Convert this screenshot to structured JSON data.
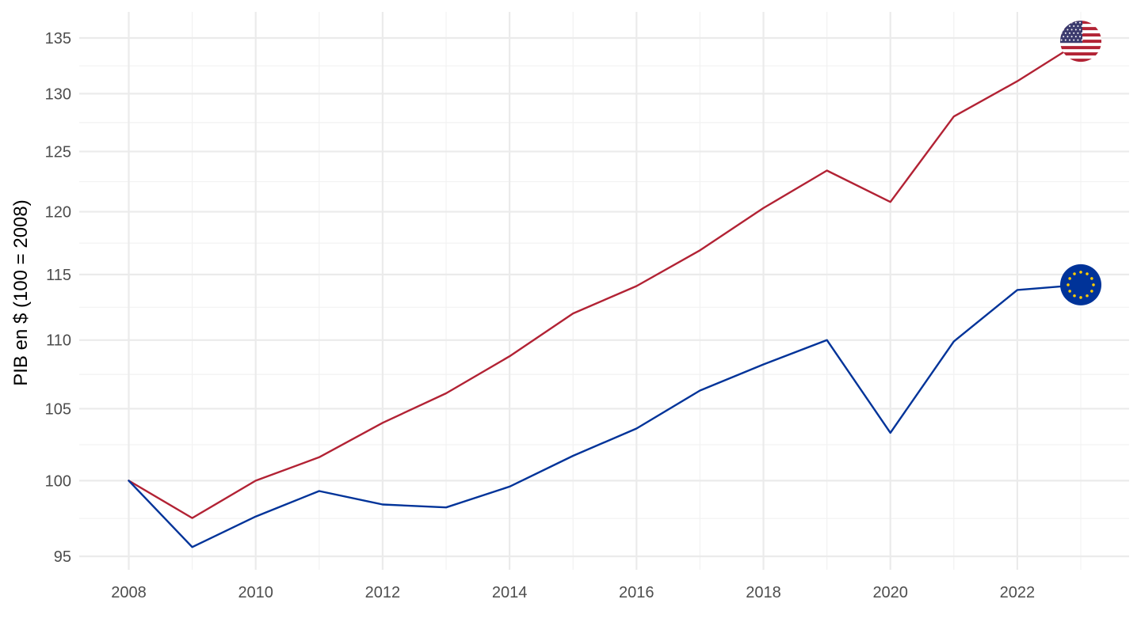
{
  "chart_data": {
    "type": "line",
    "title": "",
    "xlabel": "",
    "ylabel": "PIB en $ (100 = 2008)",
    "y_scale": "log",
    "x": [
      2008,
      2009,
      2010,
      2011,
      2012,
      2013,
      2014,
      2015,
      2016,
      2017,
      2018,
      2019,
      2020,
      2021,
      2022,
      2023
    ],
    "xlim": [
      2008,
      2023
    ],
    "ylim": [
      95,
      135
    ],
    "x_ticks": [
      2008,
      2010,
      2012,
      2014,
      2016,
      2018,
      2020,
      2022
    ],
    "y_ticks": [
      95,
      100,
      105,
      110,
      115,
      120,
      125,
      130,
      135
    ],
    "grid": true,
    "legend": "none",
    "series": [
      {
        "flag_icon": "us-flag-icon",
        "color": "#B22234",
        "values": [
          100,
          97.5,
          100.0,
          101.6,
          104.0,
          106.1,
          108.8,
          112.0,
          114.1,
          116.9,
          120.3,
          123.4,
          120.8,
          128.0,
          131.1,
          134.7
        ]
      },
      {
        "flag_icon": "eu-flag-icon",
        "color": "#003399",
        "values": [
          100,
          95.6,
          97.6,
          99.3,
          98.4,
          98.2,
          99.6,
          101.7,
          103.6,
          106.3,
          108.2,
          110.0,
          103.3,
          109.9,
          113.8,
          114.2
        ]
      }
    ]
  }
}
